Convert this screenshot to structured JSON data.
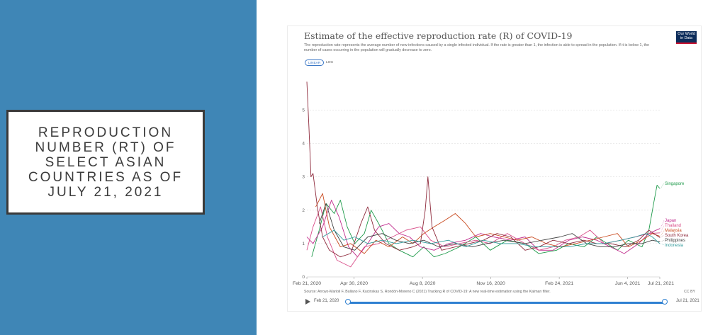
{
  "slide": {
    "title": "REPRODUCTION\nNUMBER (RT) OF\nSELECT ASIAN\nCOUNTRIES AS OF\nJULY 21, 2021",
    "panel_color": "#3f86b6"
  },
  "chart_card": {
    "logo_line1": "Our World",
    "logo_line2": "in Data",
    "toggle_linear": "LINEAR",
    "toggle_log": "LOG",
    "source": "Source: Arroyo-Marioli F, Bullano F, Kucinskas S, Rondón-Moreno C (2021) Tracking R of COVID-19: A new real-time estimation using the Kalman filter.",
    "license": "CC BY",
    "timeline_start": "Feb 21, 2020",
    "timeline_end": "Jul 21, 2021"
  },
  "chart_data": {
    "type": "line",
    "title": "Estimate of the effective reproduction rate (R) of COVID-19",
    "subtitle": "The reproduction rate represents the average number of new infections caused by a single infected individual. If the rate is greater than 1, the infection is able to spread in the population. If it is below 1, the number of cases occurring in the population will gradually decrease to zero.",
    "xlabel": "",
    "ylabel": "",
    "x_ticks": [
      "Feb 21, 2020",
      "Apr 30, 2020",
      "Aug 8, 2020",
      "Nov 16, 2020",
      "Feb 24, 2021",
      "Jun 4, 2021",
      "Jul 21, 2021"
    ],
    "x_ticks_date": [
      "2020-02-21",
      "2020-04-30",
      "2020-08-08",
      "2020-11-16",
      "2021-02-24",
      "2021-06-04",
      "2021-07-21"
    ],
    "y_ticks": [
      0,
      1,
      2,
      3,
      4,
      5
    ],
    "xlim": [
      "2020-02-21",
      "2021-07-21"
    ],
    "ylim": [
      0,
      5.9
    ],
    "grid": "horizontal dotted",
    "legend": "right-end labels",
    "series": [
      {
        "name": "Singapore",
        "color": "#1e9a4a",
        "points": [
          [
            "2020-02-28",
            0.6
          ],
          [
            "2020-03-10",
            1.4
          ],
          [
            "2020-03-20",
            2.2
          ],
          [
            "2020-04-01",
            1.9
          ],
          [
            "2020-04-10",
            2.3
          ],
          [
            "2020-04-20",
            1.5
          ],
          [
            "2020-05-01",
            1.0
          ],
          [
            "2020-05-15",
            1.3
          ],
          [
            "2020-05-25",
            2.0
          ],
          [
            "2020-06-05",
            1.6
          ],
          [
            "2020-06-20",
            1.0
          ],
          [
            "2020-07-05",
            0.8
          ],
          [
            "2020-07-25",
            0.6
          ],
          [
            "2020-08-10",
            0.9
          ],
          [
            "2020-08-25",
            0.6
          ],
          [
            "2020-09-10",
            0.7
          ],
          [
            "2020-10-01",
            0.9
          ],
          [
            "2020-10-25",
            1.2
          ],
          [
            "2020-11-15",
            0.8
          ],
          [
            "2020-12-10",
            1.1
          ],
          [
            "2021-01-05",
            1.0
          ],
          [
            "2021-01-25",
            0.7
          ],
          [
            "2021-02-20",
            0.8
          ],
          [
            "2021-03-10",
            1.0
          ],
          [
            "2021-04-01",
            0.9
          ],
          [
            "2021-04-20",
            1.2
          ],
          [
            "2021-05-05",
            1.0
          ],
          [
            "2021-05-20",
            0.8
          ],
          [
            "2021-06-05",
            1.1
          ],
          [
            "2021-06-25",
            0.9
          ],
          [
            "2021-07-05",
            1.4
          ],
          [
            "2021-07-12",
            2.2
          ],
          [
            "2021-07-17",
            2.75
          ],
          [
            "2021-07-21",
            2.65
          ]
        ]
      },
      {
        "name": "Japan",
        "color": "#c02c8d",
        "points": [
          [
            "2020-02-21",
            1.2
          ],
          [
            "2020-03-01",
            1.0
          ],
          [
            "2020-03-15",
            1.5
          ],
          [
            "2020-03-28",
            2.3
          ],
          [
            "2020-04-08",
            1.8
          ],
          [
            "2020-04-22",
            0.9
          ],
          [
            "2020-05-05",
            0.6
          ],
          [
            "2020-05-20",
            1.0
          ],
          [
            "2020-06-05",
            1.5
          ],
          [
            "2020-06-20",
            1.6
          ],
          [
            "2020-07-05",
            1.3
          ],
          [
            "2020-07-20",
            1.2
          ],
          [
            "2020-08-05",
            0.9
          ],
          [
            "2020-08-25",
            0.8
          ],
          [
            "2020-09-15",
            1.0
          ],
          [
            "2020-10-10",
            1.1
          ],
          [
            "2020-11-01",
            1.3
          ],
          [
            "2020-11-20",
            1.2
          ],
          [
            "2020-12-15",
            1.1
          ],
          [
            "2021-01-05",
            1.2
          ],
          [
            "2021-01-25",
            0.8
          ],
          [
            "2021-02-15",
            0.8
          ],
          [
            "2021-03-10",
            1.1
          ],
          [
            "2021-03-30",
            1.2
          ],
          [
            "2021-04-20",
            1.1
          ],
          [
            "2021-05-10",
            0.9
          ],
          [
            "2021-05-30",
            0.7
          ],
          [
            "2021-06-20",
            1.0
          ],
          [
            "2021-07-05",
            1.3
          ],
          [
            "2021-07-21",
            1.45
          ]
        ]
      },
      {
        "name": "Thailand",
        "color": "#d94f8a",
        "points": [
          [
            "2020-02-21",
            0.8
          ],
          [
            "2020-03-01",
            1.5
          ],
          [
            "2020-03-12",
            2.1
          ],
          [
            "2020-03-22",
            1.2
          ],
          [
            "2020-04-05",
            0.5
          ],
          [
            "2020-04-25",
            0.3
          ],
          [
            "2020-05-15",
            0.9
          ],
          [
            "2020-06-05",
            1.0
          ],
          [
            "2020-06-25",
            1.2
          ],
          [
            "2020-07-15",
            1.4
          ],
          [
            "2020-08-05",
            1.5
          ],
          [
            "2020-08-20",
            1.1
          ],
          [
            "2020-09-10",
            0.9
          ],
          [
            "2020-10-01",
            1.0
          ],
          [
            "2020-10-25",
            1.1
          ],
          [
            "2020-11-15",
            1.0
          ],
          [
            "2020-12-10",
            1.3
          ],
          [
            "2021-01-05",
            1.0
          ],
          [
            "2021-01-25",
            0.8
          ],
          [
            "2021-02-15",
            0.9
          ],
          [
            "2021-03-05",
            1.1
          ],
          [
            "2021-03-25",
            1.2
          ],
          [
            "2021-04-10",
            1.4
          ],
          [
            "2021-05-01",
            1.0
          ],
          [
            "2021-05-25",
            1.1
          ],
          [
            "2021-06-15",
            1.2
          ],
          [
            "2021-07-05",
            1.3
          ],
          [
            "2021-07-21",
            1.32
          ]
        ]
      },
      {
        "name": "Malaysia",
        "color": "#c94a1f",
        "points": [
          [
            "2020-03-05",
            2.1
          ],
          [
            "2020-03-15",
            2.5
          ],
          [
            "2020-03-25",
            1.5
          ],
          [
            "2020-04-10",
            0.9
          ],
          [
            "2020-04-25",
            1.0
          ],
          [
            "2020-05-15",
            0.7
          ],
          [
            "2020-06-01",
            1.1
          ],
          [
            "2020-06-20",
            0.9
          ],
          [
            "2020-07-10",
            1.2
          ],
          [
            "2020-07-25",
            1.0
          ],
          [
            "2020-08-10",
            1.3
          ],
          [
            "2020-08-25",
            1.5
          ],
          [
            "2020-09-10",
            1.7
          ],
          [
            "2020-09-25",
            1.9
          ],
          [
            "2020-10-10",
            1.6
          ],
          [
            "2020-10-25",
            1.2
          ],
          [
            "2020-11-15",
            1.3
          ],
          [
            "2020-12-05",
            1.2
          ],
          [
            "2020-12-25",
            1.1
          ],
          [
            "2021-01-15",
            1.2
          ],
          [
            "2021-02-05",
            1.0
          ],
          [
            "2021-02-25",
            0.9
          ],
          [
            "2021-03-20",
            1.0
          ],
          [
            "2021-04-10",
            1.1
          ],
          [
            "2021-04-30",
            1.2
          ],
          [
            "2021-05-20",
            1.3
          ],
          [
            "2021-06-05",
            0.9
          ],
          [
            "2021-06-25",
            1.1
          ],
          [
            "2021-07-10",
            1.3
          ],
          [
            "2021-07-21",
            1.22
          ]
        ]
      },
      {
        "name": "South Korea",
        "color": "#8e2a3c",
        "points": [
          [
            "2020-02-21",
            5.85
          ],
          [
            "2020-02-24",
            4.5
          ],
          [
            "2020-02-27",
            3.0
          ],
          [
            "2020-03-01",
            3.1
          ],
          [
            "2020-03-08",
            2.0
          ],
          [
            "2020-03-15",
            1.2
          ],
          [
            "2020-03-25",
            0.8
          ],
          [
            "2020-04-10",
            0.6
          ],
          [
            "2020-04-25",
            0.7
          ],
          [
            "2020-05-10",
            1.6
          ],
          [
            "2020-05-20",
            2.1
          ],
          [
            "2020-05-30",
            1.4
          ],
          [
            "2020-06-15",
            1.0
          ],
          [
            "2020-07-05",
            0.8
          ],
          [
            "2020-07-25",
            0.9
          ],
          [
            "2020-08-05",
            1.0
          ],
          [
            "2020-08-12",
            2.0
          ],
          [
            "2020-08-16",
            3.0
          ],
          [
            "2020-08-22",
            1.5
          ],
          [
            "2020-09-05",
            0.8
          ],
          [
            "2020-09-25",
            0.9
          ],
          [
            "2020-10-15",
            1.0
          ],
          [
            "2020-11-05",
            1.1
          ],
          [
            "2020-11-25",
            1.3
          ],
          [
            "2020-12-15",
            1.2
          ],
          [
            "2021-01-05",
            0.8
          ],
          [
            "2021-01-25",
            0.9
          ],
          [
            "2021-02-15",
            1.1
          ],
          [
            "2021-03-10",
            1.0
          ],
          [
            "2021-04-01",
            1.1
          ],
          [
            "2021-04-20",
            1.0
          ],
          [
            "2021-05-10",
            1.0
          ],
          [
            "2021-06-01",
            0.9
          ],
          [
            "2021-06-20",
            1.1
          ],
          [
            "2021-07-05",
            1.4
          ],
          [
            "2021-07-21",
            1.18
          ]
        ]
      },
      {
        "name": "Philippines",
        "color": "#444444",
        "points": [
          [
            "2020-03-10",
            1.6
          ],
          [
            "2020-03-20",
            2.2
          ],
          [
            "2020-04-01",
            1.4
          ],
          [
            "2020-04-15",
            0.9
          ],
          [
            "2020-05-01",
            0.8
          ],
          [
            "2020-05-20",
            1.2
          ],
          [
            "2020-06-10",
            1.3
          ],
          [
            "2020-06-30",
            1.1
          ],
          [
            "2020-07-20",
            1.0
          ],
          [
            "2020-08-10",
            1.1
          ],
          [
            "2020-09-01",
            0.9
          ],
          [
            "2020-09-25",
            1.0
          ],
          [
            "2020-10-20",
            0.9
          ],
          [
            "2020-11-10",
            1.0
          ],
          [
            "2020-12-05",
            1.1
          ],
          [
            "2021-01-05",
            1.0
          ],
          [
            "2021-01-30",
            1.1
          ],
          [
            "2021-02-25",
            1.2
          ],
          [
            "2021-03-15",
            1.3
          ],
          [
            "2021-04-05",
            1.0
          ],
          [
            "2021-04-25",
            0.9
          ],
          [
            "2021-05-15",
            0.9
          ],
          [
            "2021-06-05",
            1.0
          ],
          [
            "2021-06-25",
            1.0
          ],
          [
            "2021-07-10",
            1.1
          ],
          [
            "2021-07-21",
            1.05
          ]
        ]
      },
      {
        "name": "Indonesia",
        "color": "#2f9a9a",
        "points": [
          [
            "2020-03-15",
            1.2
          ],
          [
            "2020-04-01",
            1.4
          ],
          [
            "2020-04-15",
            1.1
          ],
          [
            "2020-05-01",
            1.2
          ],
          [
            "2020-05-20",
            1.0
          ],
          [
            "2020-06-10",
            1.1
          ],
          [
            "2020-07-01",
            1.0
          ],
          [
            "2020-07-25",
            1.1
          ],
          [
            "2020-08-20",
            1.0
          ],
          [
            "2020-09-15",
            1.1
          ],
          [
            "2020-10-10",
            0.9
          ],
          [
            "2020-11-05",
            1.1
          ],
          [
            "2020-11-30",
            1.0
          ],
          [
            "2020-12-25",
            1.0
          ],
          [
            "2021-01-20",
            0.9
          ],
          [
            "2021-02-15",
            0.9
          ],
          [
            "2021-03-10",
            0.9
          ],
          [
            "2021-04-05",
            1.0
          ],
          [
            "2021-04-30",
            1.0
          ],
          [
            "2021-05-25",
            1.1
          ],
          [
            "2021-06-15",
            1.2
          ],
          [
            "2021-07-01",
            1.3
          ],
          [
            "2021-07-10",
            1.2
          ],
          [
            "2021-07-21",
            1.0
          ]
        ]
      }
    ]
  }
}
